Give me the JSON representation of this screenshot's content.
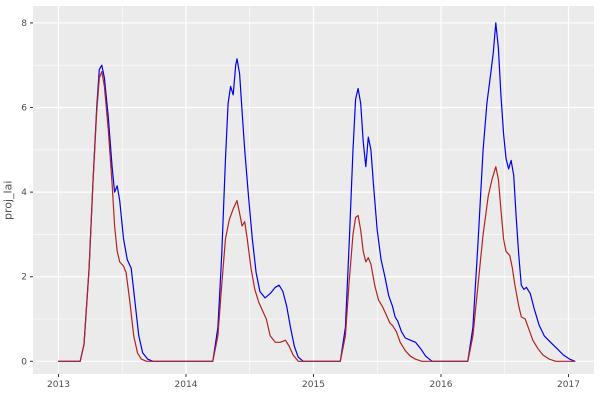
{
  "chart_data": {
    "type": "line",
    "title": "",
    "xlabel": "",
    "ylabel": "proj_lai",
    "x_ticks": [
      2013,
      2014,
      2015,
      2016,
      2017
    ],
    "x_minor_ticks": [
      2013.5,
      2014.5,
      2015.5,
      2016.5
    ],
    "y_ticks": [
      0,
      2,
      4,
      6,
      8
    ],
    "y_minor_ticks": [
      1,
      3,
      5,
      7
    ],
    "xlim": [
      2012.8,
      2017.2
    ],
    "ylim": [
      -0.3,
      8.4
    ],
    "grid": true,
    "legend": false,
    "theme": "ggplot-grey",
    "colors": {
      "panel_bg": "#ebebeb",
      "grid": "#ffffff",
      "tick": "#333333",
      "tick_label": "#4d4d4d"
    },
    "series": [
      {
        "name": "blue-projection",
        "color": "#0000ee",
        "points": [
          [
            2013.0,
            0
          ],
          [
            2013.17,
            0
          ],
          [
            2013.2,
            0.4
          ],
          [
            2013.24,
            2.2
          ],
          [
            2013.27,
            4.2
          ],
          [
            2013.3,
            6.0
          ],
          [
            2013.32,
            6.9
          ],
          [
            2013.34,
            7.0
          ],
          [
            2013.36,
            6.7
          ],
          [
            2013.39,
            5.8
          ],
          [
            2013.42,
            4.6
          ],
          [
            2013.44,
            4.0
          ],
          [
            2013.46,
            4.15
          ],
          [
            2013.48,
            3.8
          ],
          [
            2013.51,
            2.9
          ],
          [
            2013.54,
            2.4
          ],
          [
            2013.57,
            2.2
          ],
          [
            2013.6,
            1.4
          ],
          [
            2013.63,
            0.6
          ],
          [
            2013.66,
            0.2
          ],
          [
            2013.7,
            0.05
          ],
          [
            2013.74,
            0
          ],
          [
            2014.21,
            0
          ],
          [
            2014.25,
            0.8
          ],
          [
            2014.28,
            2.5
          ],
          [
            2014.31,
            4.8
          ],
          [
            2014.33,
            6.1
          ],
          [
            2014.35,
            6.5
          ],
          [
            2014.37,
            6.3
          ],
          [
            2014.39,
            7.0
          ],
          [
            2014.4,
            7.15
          ],
          [
            2014.42,
            6.8
          ],
          [
            2014.44,
            5.9
          ],
          [
            2014.46,
            5.0
          ],
          [
            2014.49,
            3.9
          ],
          [
            2014.52,
            2.9
          ],
          [
            2014.55,
            2.1
          ],
          [
            2014.58,
            1.65
          ],
          [
            2014.62,
            1.5
          ],
          [
            2014.66,
            1.6
          ],
          [
            2014.7,
            1.75
          ],
          [
            2014.73,
            1.8
          ],
          [
            2014.76,
            1.65
          ],
          [
            2014.79,
            1.3
          ],
          [
            2014.82,
            0.8
          ],
          [
            2014.85,
            0.35
          ],
          [
            2014.88,
            0.1
          ],
          [
            2014.92,
            0
          ],
          [
            2015.21,
            0
          ],
          [
            2015.25,
            0.8
          ],
          [
            2015.28,
            2.8
          ],
          [
            2015.31,
            5.0
          ],
          [
            2015.33,
            6.2
          ],
          [
            2015.35,
            6.45
          ],
          [
            2015.37,
            6.1
          ],
          [
            2015.39,
            5.2
          ],
          [
            2015.41,
            4.6
          ],
          [
            2015.43,
            5.3
          ],
          [
            2015.45,
            5.0
          ],
          [
            2015.47,
            4.2
          ],
          [
            2015.5,
            3.1
          ],
          [
            2015.53,
            2.4
          ],
          [
            2015.56,
            2.0
          ],
          [
            2015.59,
            1.55
          ],
          [
            2015.62,
            1.3
          ],
          [
            2015.64,
            1.05
          ],
          [
            2015.66,
            0.95
          ],
          [
            2015.69,
            0.7
          ],
          [
            2015.72,
            0.55
          ],
          [
            2015.76,
            0.5
          ],
          [
            2015.8,
            0.45
          ],
          [
            2015.84,
            0.3
          ],
          [
            2015.88,
            0.12
          ],
          [
            2015.93,
            0
          ],
          [
            2016.21,
            0
          ],
          [
            2016.25,
            0.8
          ],
          [
            2016.29,
            2.8
          ],
          [
            2016.33,
            5.0
          ],
          [
            2016.36,
            6.1
          ],
          [
            2016.39,
            6.8
          ],
          [
            2016.41,
            7.3
          ],
          [
            2016.43,
            8.0
          ],
          [
            2016.45,
            7.4
          ],
          [
            2016.47,
            6.3
          ],
          [
            2016.49,
            5.4
          ],
          [
            2016.51,
            4.8
          ],
          [
            2016.53,
            4.55
          ],
          [
            2016.55,
            4.75
          ],
          [
            2016.57,
            4.4
          ],
          [
            2016.59,
            3.4
          ],
          [
            2016.61,
            2.5
          ],
          [
            2016.63,
            1.8
          ],
          [
            2016.65,
            1.7
          ],
          [
            2016.67,
            1.75
          ],
          [
            2016.7,
            1.6
          ],
          [
            2016.73,
            1.25
          ],
          [
            2016.77,
            0.85
          ],
          [
            2016.81,
            0.6
          ],
          [
            2016.86,
            0.45
          ],
          [
            2016.91,
            0.3
          ],
          [
            2016.96,
            0.15
          ],
          [
            2017.01,
            0.05
          ],
          [
            2017.05,
            0
          ]
        ]
      },
      {
        "name": "darkred-projection",
        "color": "#b22222",
        "points": [
          [
            2013.0,
            0
          ],
          [
            2013.17,
            0
          ],
          [
            2013.2,
            0.4
          ],
          [
            2013.24,
            2.2
          ],
          [
            2013.27,
            4.2
          ],
          [
            2013.3,
            5.9
          ],
          [
            2013.32,
            6.7
          ],
          [
            2013.34,
            6.85
          ],
          [
            2013.36,
            6.5
          ],
          [
            2013.39,
            5.5
          ],
          [
            2013.42,
            4.2
          ],
          [
            2013.44,
            3.2
          ],
          [
            2013.46,
            2.6
          ],
          [
            2013.48,
            2.35
          ],
          [
            2013.51,
            2.25
          ],
          [
            2013.53,
            2.1
          ],
          [
            2013.56,
            1.4
          ],
          [
            2013.59,
            0.6
          ],
          [
            2013.62,
            0.2
          ],
          [
            2013.65,
            0.05
          ],
          [
            2013.69,
            0
          ],
          [
            2014.21,
            0
          ],
          [
            2014.25,
            0.6
          ],
          [
            2014.28,
            1.8
          ],
          [
            2014.31,
            2.9
          ],
          [
            2014.34,
            3.35
          ],
          [
            2014.37,
            3.6
          ],
          [
            2014.4,
            3.8
          ],
          [
            2014.42,
            3.5
          ],
          [
            2014.44,
            3.2
          ],
          [
            2014.46,
            3.3
          ],
          [
            2014.48,
            2.9
          ],
          [
            2014.51,
            2.2
          ],
          [
            2014.54,
            1.7
          ],
          [
            2014.57,
            1.4
          ],
          [
            2014.6,
            1.2
          ],
          [
            2014.63,
            1.0
          ],
          [
            2014.66,
            0.6
          ],
          [
            2014.7,
            0.45
          ],
          [
            2014.74,
            0.45
          ],
          [
            2014.78,
            0.5
          ],
          [
            2014.81,
            0.35
          ],
          [
            2014.84,
            0.15
          ],
          [
            2014.88,
            0
          ],
          [
            2015.21,
            0
          ],
          [
            2015.25,
            0.6
          ],
          [
            2015.28,
            1.9
          ],
          [
            2015.31,
            3.0
          ],
          [
            2015.33,
            3.4
          ],
          [
            2015.35,
            3.45
          ],
          [
            2015.37,
            3.1
          ],
          [
            2015.39,
            2.6
          ],
          [
            2015.41,
            2.35
          ],
          [
            2015.43,
            2.45
          ],
          [
            2015.45,
            2.3
          ],
          [
            2015.48,
            1.8
          ],
          [
            2015.51,
            1.45
          ],
          [
            2015.54,
            1.3
          ],
          [
            2015.57,
            1.1
          ],
          [
            2015.6,
            0.9
          ],
          [
            2015.62,
            0.85
          ],
          [
            2015.65,
            0.7
          ],
          [
            2015.68,
            0.45
          ],
          [
            2015.72,
            0.25
          ],
          [
            2015.76,
            0.12
          ],
          [
            2015.8,
            0.05
          ],
          [
            2015.85,
            0
          ],
          [
            2016.21,
            0
          ],
          [
            2016.25,
            0.6
          ],
          [
            2016.29,
            1.8
          ],
          [
            2016.33,
            3.0
          ],
          [
            2016.37,
            3.9
          ],
          [
            2016.4,
            4.3
          ],
          [
            2016.43,
            4.6
          ],
          [
            2016.45,
            4.3
          ],
          [
            2016.47,
            3.6
          ],
          [
            2016.49,
            2.9
          ],
          [
            2016.51,
            2.6
          ],
          [
            2016.54,
            2.5
          ],
          [
            2016.56,
            2.2
          ],
          [
            2016.58,
            1.8
          ],
          [
            2016.61,
            1.3
          ],
          [
            2016.63,
            1.05
          ],
          [
            2016.66,
            1.0
          ],
          [
            2016.69,
            0.75
          ],
          [
            2016.72,
            0.5
          ],
          [
            2016.76,
            0.3
          ],
          [
            2016.8,
            0.15
          ],
          [
            2016.85,
            0.05
          ],
          [
            2016.9,
            0
          ],
          [
            2017.05,
            0
          ]
        ]
      }
    ]
  }
}
